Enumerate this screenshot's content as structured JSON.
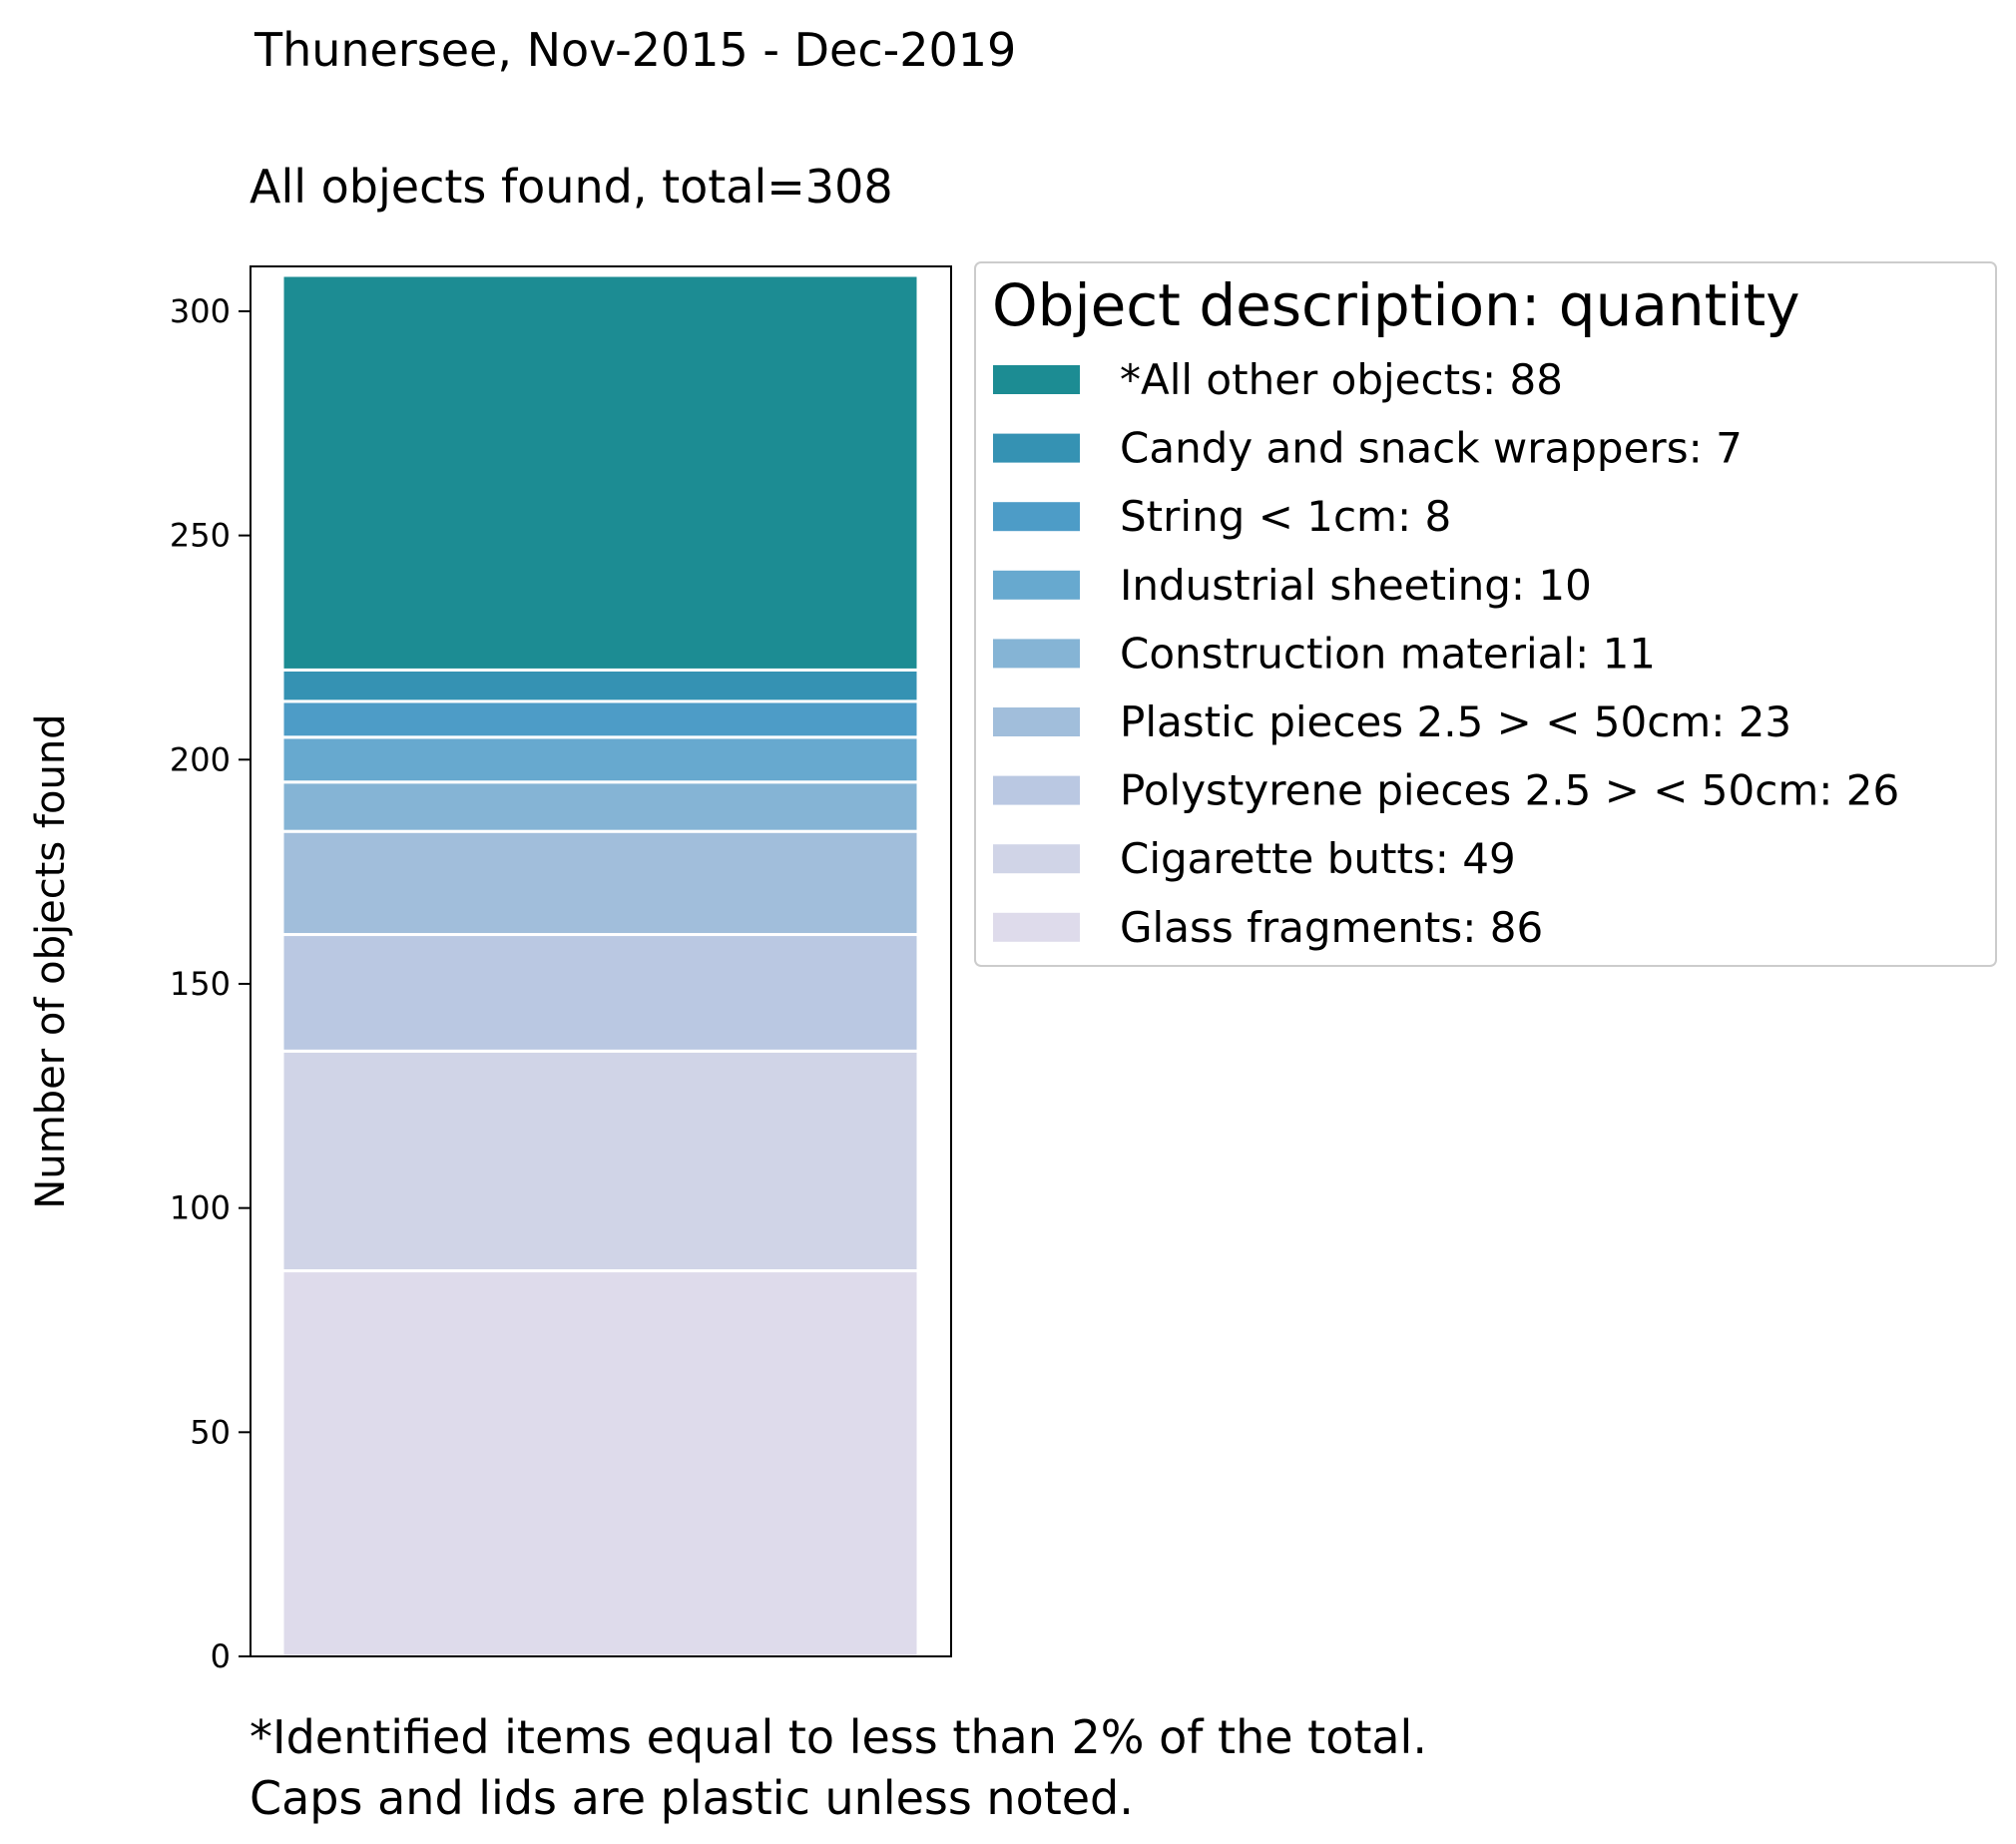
{
  "chart_data": {
    "type": "bar",
    "stacked": true,
    "title": "Thunersee, Nov-2015 - Dec-2019",
    "subtitle": "All objects found,  total=308",
    "xlabel": "",
    "ylabel": "Number of objects found",
    "ylim": [
      0,
      310
    ],
    "yticks": [
      0,
      50,
      100,
      150,
      200,
      250,
      300
    ],
    "grid": false,
    "legend": {
      "title": "Object description: quantity",
      "placement": "upper-right-outside"
    },
    "series": [
      {
        "name": "Glass fragments",
        "label": "Glass fragments: 86",
        "value": 86,
        "color": "#dedbeb"
      },
      {
        "name": "Cigarette butts",
        "label": "Cigarette butts: 49",
        "value": 49,
        "color": "#d0d4e7"
      },
      {
        "name": "Polystyrene pieces 2.5 > < 50cm",
        "label": "Polystyrene pieces 2.5 > < 50cm: 26",
        "value": 26,
        "color": "#bac8e2"
      },
      {
        "name": "Plastic pieces 2.5 > < 50cm",
        "label": "Plastic pieces 2.5 > < 50cm: 23",
        "value": 23,
        "color": "#a1bedb"
      },
      {
        "name": "Construction material",
        "label": "Construction material: 11",
        "value": 11,
        "color": "#85b4d5"
      },
      {
        "name": "Industrial sheeting",
        "label": "Industrial sheeting: 10",
        "value": 10,
        "color": "#67a9cf"
      },
      {
        "name": "String < 1cm",
        "label": "String < 1cm: 8",
        "value": 8,
        "color": "#4d9cc7"
      },
      {
        "name": "Candy and snack wrappers",
        "label": "Candy and snack wrappers: 7",
        "value": 7,
        "color": "#3592b3"
      },
      {
        "name": "*All other objects",
        "label": "*All other objects: 88",
        "value": 88,
        "color": "#1c8c93"
      }
    ],
    "footnote": [
      "*Identified items equal to less than 2% of the total.",
      "Caps and lids are plastic unless noted."
    ]
  }
}
